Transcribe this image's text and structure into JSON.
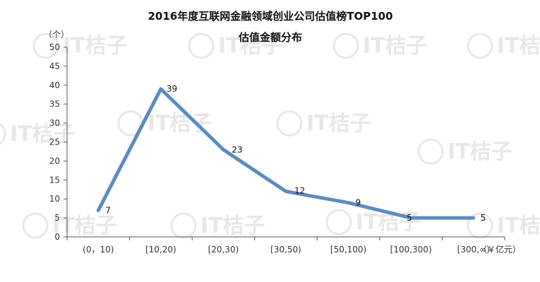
{
  "chart_data": {
    "type": "line",
    "title": "2016年度互联网金融领域创业公司估值榜TOP100",
    "subtitle": "估值金额分布",
    "ylabel": "（个）",
    "xlabel": "（￥亿元）",
    "categories": [
      "(0，10)",
      "[10,20)",
      "[20,30)",
      "[30,50)",
      "[50,100)",
      "[100,300)",
      "[300,∞)"
    ],
    "values": [
      7,
      39,
      23,
      12,
      9,
      5,
      5
    ],
    "ylim": [
      0,
      50
    ],
    "yticks": [
      0,
      5,
      10,
      15,
      20,
      25,
      30,
      35,
      40,
      45,
      50
    ],
    "grid": false,
    "legend": "none",
    "series_color": "#5b8bc0"
  },
  "watermark": "IT桔子"
}
